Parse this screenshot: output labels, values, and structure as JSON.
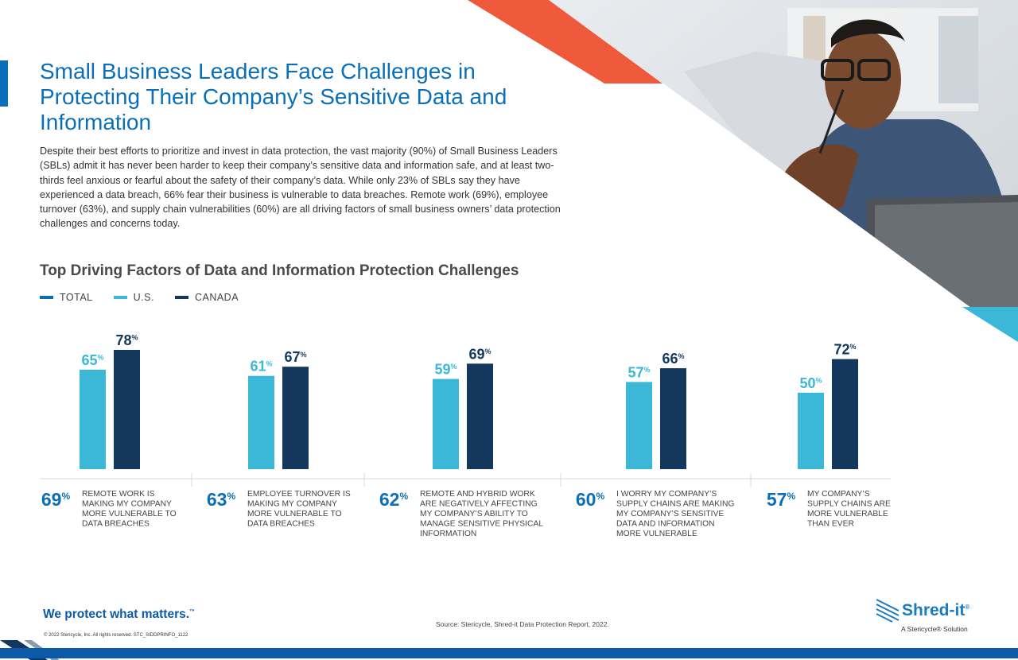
{
  "title": "Small Business Leaders Face Challenges in Protecting Their Company’s Sensitive Data and Information",
  "intro": "Despite their best efforts to prioritize and invest in data protection, the vast majority (90%) of Small Business Leaders (SBLs) admit it has never been harder to keep their company’s sensitive data and information safe, and at least two-thirds feel anxious or fearful about the safety of their company’s data. While only 23% of SBLs say they have experienced a data breach, 66% fear their business is vulnerable to data breaches. Remote work (69%), employee turnover (63%), and supply chain vulnerabilities (60%) are all driving factors of small business owners’ data protection challenges and concerns today.",
  "chart_data": {
    "type": "bar",
    "title": "Top Driving Factors of Data and Information Protection Challenges",
    "legend": [
      {
        "name": "TOTAL",
        "color": "#0a6fb8"
      },
      {
        "name": "U.S.",
        "color": "#3bb8d8"
      },
      {
        "name": "CANADA",
        "color": "#14375e"
      }
    ],
    "categories": [
      "REMOTE WORK IS MAKING MY COMPANY MORE VULNERABLE TO DATA BREACHES",
      "EMPLOYEE TURNOVER IS MAKING MY COMPANY MORE VULNERABLE TO DATA BREACHES",
      "REMOTE AND HYBRID WORK ARE NEGATIVELY AFFECTING MY COMPANY’S ABILITY TO MANAGE SENSITIVE PHYSICAL INFORMATION",
      "I WORRY MY COMPANY’S SUPPLY CHAINS ARE MAKING MY COMPANY’S SENSITIVE DATA AND INFORMATION MORE VULNERABLE",
      "MY COMPANY’S SUPPLY CHAINS ARE MORE VULNERABLE THAN EVER"
    ],
    "category_lines": [
      [
        "REMOTE WORK IS",
        "MAKING MY COMPANY",
        "MORE VULNERABLE TO",
        "DATA BREACHES"
      ],
      [
        "EMPLOYEE TURNOVER IS",
        "MAKING MY COMPANY",
        "MORE VULNERABLE TO",
        "DATA BREACHES"
      ],
      [
        "REMOTE AND HYBRID WORK",
        "ARE NEGATIVELY AFFECTING",
        "MY COMPANY’S ABILITY TO",
        "MANAGE SENSITIVE PHYSICAL",
        "INFORMATION"
      ],
      [
        "I WORRY MY COMPANY’S",
        "SUPPLY CHAINS ARE MAKING",
        "MY COMPANY’S SENSITIVE",
        "DATA AND INFORMATION",
        "MORE VULNERABLE"
      ],
      [
        "MY COMPANY’S",
        "SUPPLY CHAINS ARE",
        "MORE VULNERABLE",
        "THAN EVER"
      ]
    ],
    "series": [
      {
        "name": "TOTAL",
        "values": [
          69,
          63,
          62,
          60,
          57
        ]
      },
      {
        "name": "U.S.",
        "values": [
          65,
          61,
          59,
          57,
          50
        ]
      },
      {
        "name": "CANADA",
        "values": [
          78,
          67,
          69,
          66,
          72
        ]
      }
    ],
    "unit": "%",
    "ylim": [
      0,
      100
    ]
  },
  "footer": {
    "tagline": "We protect what matters.",
    "tagline_mark": "™",
    "copyright": "© 2022 Stericycle, Inc. All rights reserved.   STC_SIDDPRINFO_1122",
    "source": "Source: Stericycle, Shred-it Data Protection Report, 2022."
  },
  "logo": {
    "wordmark": "Shred-it",
    "mark": "®",
    "subtitle": "A Stericycle® Solution"
  },
  "colors": {
    "accent_blue": "#0a6fb8",
    "light_blue": "#3bb8d8",
    "navy": "#14375e",
    "orange": "#ef5a3c"
  }
}
